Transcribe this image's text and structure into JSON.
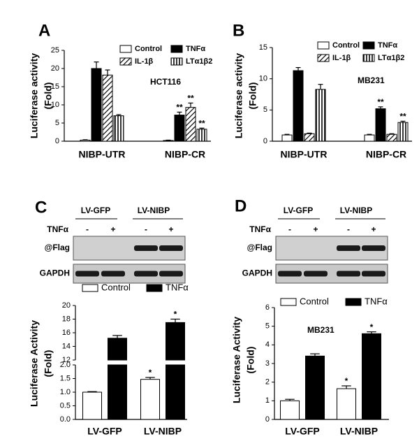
{
  "chart_data": [
    {
      "type": "bar",
      "panel": "A",
      "ylabel": [
        "Luciferase activity",
        "(Fold)"
      ],
      "annotation": "HCT116",
      "categories": [
        "NIBP-UTR",
        "NIBP-CR"
      ],
      "ylim": [
        0,
        25
      ],
      "yticks": [
        0,
        5,
        10,
        15,
        20,
        25
      ],
      "series": [
        {
          "name": "Control",
          "color": "#ffffff",
          "fill": "solid",
          "values": [
            0.3,
            0.2
          ],
          "errors": [
            0.1,
            0.1
          ]
        },
        {
          "name": "TNFα",
          "color": "#000000",
          "fill": "solid",
          "values": [
            20,
            7.2
          ],
          "errors": [
            1.8,
            0.8
          ],
          "significance": [
            null,
            "**"
          ]
        },
        {
          "name": "IL-1β",
          "color": "#000000",
          "fill": "hatch",
          "values": [
            18.2,
            9.3
          ],
          "errors": [
            1.4,
            1.2
          ],
          "significance": [
            null,
            "**"
          ]
        },
        {
          "name": "LTα1β2",
          "color": "#000000",
          "fill": "vertical",
          "values": [
            7,
            3.3
          ],
          "errors": [
            0.3,
            0.3
          ],
          "significance": [
            null,
            "**"
          ]
        }
      ]
    },
    {
      "type": "bar",
      "panel": "B",
      "ylabel": [
        "Luciferase activity",
        "(Fold)"
      ],
      "annotation": "MB231",
      "categories": [
        "NIBP-UTR",
        "NIBP-CR"
      ],
      "ylim": [
        0,
        15
      ],
      "yticks": [
        0,
        5,
        10,
        15
      ],
      "series": [
        {
          "name": "Control",
          "color": "#ffffff",
          "fill": "solid",
          "values": [
            1,
            1
          ],
          "errors": [
            0.1,
            0.1
          ]
        },
        {
          "name": "TNFα",
          "color": "#000000",
          "fill": "solid",
          "values": [
            11.3,
            5.2
          ],
          "errors": [
            0.5,
            0.3
          ],
          "significance": [
            null,
            "**"
          ]
        },
        {
          "name": "IL-1β",
          "color": "#000000",
          "fill": "hatch",
          "values": [
            1.2,
            1.1
          ],
          "errors": [
            0.1,
            0.1
          ]
        },
        {
          "name": "LTα1β2",
          "color": "#000000",
          "fill": "vertical",
          "values": [
            8.3,
            3
          ],
          "errors": [
            0.8,
            0.2
          ],
          "significance": [
            null,
            "**"
          ]
        }
      ]
    },
    {
      "type": "bar",
      "panel": "C",
      "ylabel": [
        "Luciferase Activity",
        "(Fold)"
      ],
      "categories": [
        "LV-GFP",
        "LV-NIBP"
      ],
      "ylim": [
        0,
        20
      ],
      "ybreak": [
        2,
        12
      ],
      "yticks": [
        {
          "value": 0,
          "label": "0.0"
        },
        {
          "value": 0.5,
          "label": "0.5"
        },
        {
          "value": 1,
          "label": "1.0"
        },
        {
          "value": 1.5,
          "label": "1.5"
        },
        {
          "value": 2,
          "label": "2.0"
        },
        12,
        14,
        16,
        18,
        20
      ],
      "series": [
        {
          "name": "Control",
          "color": "#ffffff",
          "fill": "solid",
          "values": [
            1.0,
            1.47
          ],
          "errors": [
            0.02,
            0.07
          ],
          "significance": [
            null,
            "*"
          ]
        },
        {
          "name": "TNFα",
          "color": "#000000",
          "fill": "solid",
          "values": [
            15.2,
            17.5
          ],
          "errors": [
            0.4,
            0.5
          ],
          "significance": [
            null,
            "*"
          ]
        }
      ]
    },
    {
      "type": "bar",
      "panel": "D",
      "ylabel": [
        "Luciferase Activity",
        "(Fold)"
      ],
      "annotation": "MB231",
      "categories": [
        "LV-GFP",
        "LV-NIBP"
      ],
      "ylim": [
        0,
        6
      ],
      "yticks": [
        0,
        1,
        2,
        3,
        4,
        5,
        6
      ],
      "series": [
        {
          "name": "Control",
          "color": "#ffffff",
          "fill": "solid",
          "values": [
            1.0,
            1.65
          ],
          "errors": [
            0.08,
            0.15
          ],
          "significance": [
            null,
            "*"
          ]
        },
        {
          "name": "TNFα",
          "color": "#000000",
          "fill": "solid",
          "values": [
            3.4,
            4.6
          ],
          "errors": [
            0.12,
            0.1
          ],
          "significance": [
            null,
            "*"
          ]
        }
      ]
    }
  ],
  "blots": [
    {
      "groups": [
        "LV-GFP",
        "LV-NIBP"
      ],
      "treatment": "TNFα",
      "lanes": [
        "-",
        "+",
        "-",
        "+"
      ],
      "rows": [
        "@Flag",
        "GAPDH"
      ]
    },
    {
      "groups": [
        "LV-GFP",
        "LV-NIBP"
      ],
      "treatment": "TNFα",
      "lanes": [
        "-",
        "+",
        "-",
        "+"
      ],
      "rows": [
        "@Flag",
        "GAPDH"
      ]
    }
  ]
}
